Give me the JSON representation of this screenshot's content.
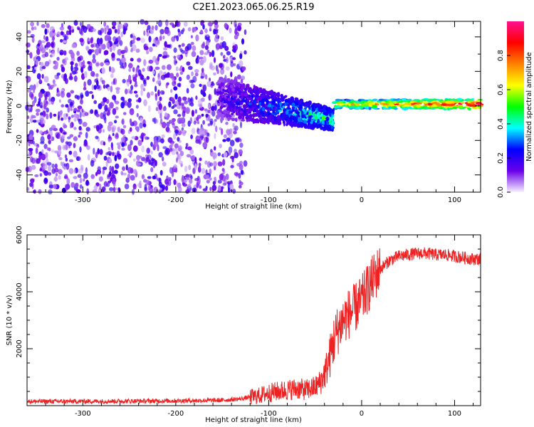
{
  "title": "C2E1.2023.065.06.25.R19",
  "chart_data": [
    {
      "type": "heatmap",
      "xlabel": "Height of straight line (km)",
      "ylabel": "Frequency (Hz)",
      "xlim": [
        -360,
        128
      ],
      "ylim": [
        -50,
        49
      ],
      "xticks": [
        -300,
        -200,
        -100,
        0,
        100
      ],
      "yticks": [
        -40,
        -20,
        0,
        20,
        40
      ],
      "grid": false,
      "colorbar": {
        "label": "Normalized spectral amplitude",
        "range": [
          0,
          1
        ],
        "ticks": [
          0.0,
          0.2,
          0.4,
          0.6,
          0.8
        ],
        "tick_labels": [
          "0.0",
          "0.2",
          "0.4",
          "0.6",
          "0.8"
        ],
        "colors": [
          "#f5f0ff",
          "#6a00e8",
          "#0000ff",
          "#00ffff",
          "#00ff00",
          "#ffff00",
          "#ff8000",
          "#ff0000",
          "#ff1090"
        ]
      },
      "regions": [
        {
          "name": "noise",
          "x": [
            -360,
            -125
          ],
          "freq": [
            -50,
            49
          ],
          "amplitude": [
            0.03,
            0.2
          ]
        },
        {
          "name": "signal-onset",
          "x": [
            -155,
            -30
          ],
          "freq_center": [
            5,
            -8
          ],
          "halfwidth_hz": [
            12,
            6
          ],
          "amplitude": [
            0.15,
            0.45
          ]
        },
        {
          "name": "carrier",
          "x": [
            -30,
            128
          ],
          "freq_center": [
            1,
            1
          ],
          "halfwidth_hz": [
            2.5,
            3
          ],
          "amplitude": [
            0.5,
            1.0
          ]
        }
      ]
    },
    {
      "type": "line",
      "xlabel": "Height of straight line (km)",
      "ylabel": "SNR (10 * v/v)",
      "xlim": [
        -360,
        128
      ],
      "ylim": [
        0,
        6000
      ],
      "xticks": [
        -300,
        -200,
        -100,
        0,
        100
      ],
      "yticks": [
        2000,
        4000,
        6000
      ],
      "grid": false,
      "color": "#ee2222",
      "series": [
        {
          "x": [
            -360,
            -300,
            -250,
            -200,
            -150,
            -130,
            -120,
            -110,
            -100,
            -90,
            -80,
            -70,
            -60,
            -50,
            -45,
            -40,
            -35,
            -30,
            -25,
            -20,
            -15,
            -10,
            -5,
            0,
            5,
            10,
            15,
            20,
            25,
            30,
            40,
            50,
            60,
            70,
            80,
            90,
            100,
            110,
            120,
            128
          ],
          "y": [
            150,
            150,
            160,
            170,
            190,
            240,
            300,
            350,
            450,
            500,
            550,
            600,
            550,
            650,
            800,
            1100,
            1600,
            2300,
            2700,
            3000,
            3200,
            3300,
            3500,
            3700,
            4000,
            4300,
            4600,
            4800,
            4950,
            5100,
            5250,
            5300,
            5350,
            5350,
            5300,
            5300,
            5250,
            5200,
            5150,
            5150
          ]
        }
      ]
    }
  ]
}
